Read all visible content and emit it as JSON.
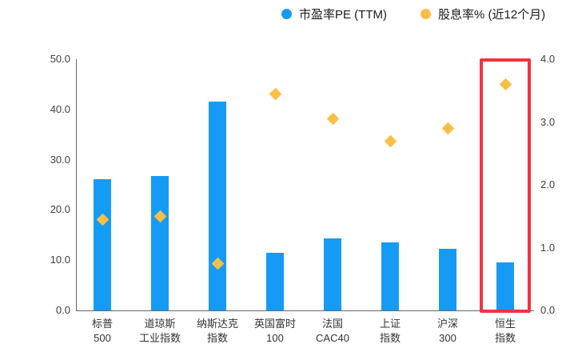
{
  "chart_data": {
    "type": "combo",
    "categories": [
      [
        "标普",
        "500"
      ],
      [
        "道琼斯",
        "工业指数"
      ],
      [
        "纳斯达克",
        "指数"
      ],
      [
        "英国富时",
        "100"
      ],
      [
        "法国",
        "CAC40"
      ],
      [
        "上证",
        "指数"
      ],
      [
        "沪深",
        "300"
      ],
      [
        "恒生",
        "指数"
      ]
    ],
    "series": [
      {
        "name": "市盈率PE (TTM)",
        "type": "bar",
        "axis": "left",
        "color": "#169BF4",
        "values": [
          26.1,
          26.7,
          41.5,
          11.5,
          14.3,
          13.6,
          12.3,
          9.5
        ]
      },
      {
        "name": "股息率% (近12个月)",
        "type": "scatter",
        "marker": "diamond",
        "axis": "right",
        "color": "#FBBE45",
        "values": [
          1.45,
          1.5,
          0.75,
          3.45,
          3.05,
          2.7,
          2.9,
          3.6
        ]
      }
    ],
    "left_axis": {
      "min": 0,
      "max": 50,
      "ticks": [
        "50.0",
        "40.0",
        "30.0",
        "20.0",
        "10.0",
        "0.0"
      ]
    },
    "right_axis": {
      "min": 0,
      "max": 4,
      "ticks": [
        "4.0",
        "3.0",
        "2.0",
        "1.0",
        "0.0"
      ]
    },
    "highlight": {
      "category_index": 7,
      "color": "#F2333F"
    },
    "grid": false,
    "legend_position": "top",
    "title": ""
  }
}
